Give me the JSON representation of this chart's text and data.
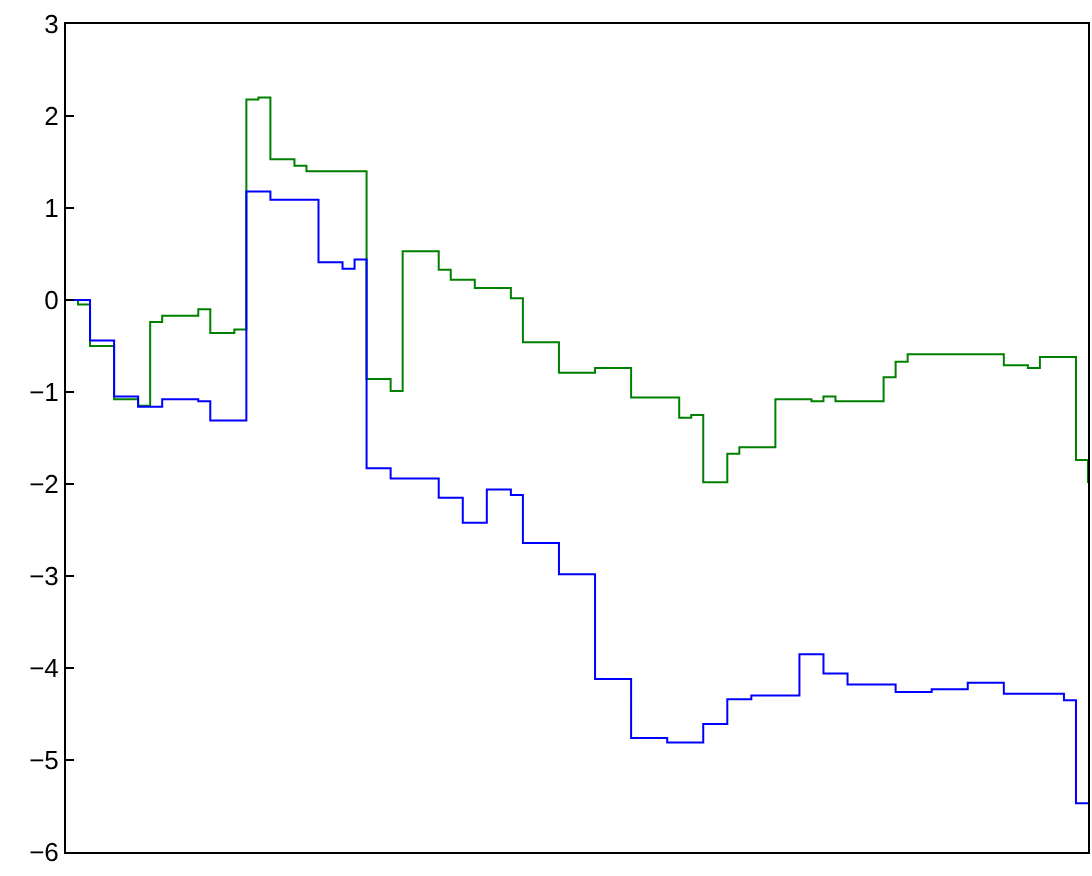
{
  "chart_data": {
    "type": "step",
    "categories": [
      null,
      null,
      null,
      null,
      null,
      null,
      null,
      null,
      null,
      null,
      null,
      null,
      null,
      null,
      null,
      null,
      null,
      null,
      null,
      null,
      null,
      null,
      null,
      null,
      null,
      null,
      null,
      null,
      null,
      null,
      null,
      null,
      null,
      null,
      null,
      null,
      null,
      null,
      null,
      null,
      null,
      null,
      null,
      null,
      null,
      null,
      null,
      null,
      null,
      null,
      null,
      null,
      null,
      null,
      null,
      null,
      null,
      null,
      null,
      null,
      null,
      null,
      null,
      null,
      null,
      null,
      null,
      null,
      null,
      null,
      null,
      null,
      null,
      null,
      null,
      null,
      null,
      null,
      null,
      null,
      null,
      null,
      null,
      null,
      null,
      null
    ],
    "series": [
      {
        "color": "#008000",
        "values": [
          0,
          -0.05,
          -0.5,
          -0.5,
          -1.08,
          -1.08,
          -1.15,
          -0.24,
          -0.17,
          -0.17,
          -0.17,
          -0.1,
          -0.36,
          -0.36,
          -0.32,
          2.18,
          2.2,
          1.53,
          1.53,
          1.46,
          1.4,
          1.4,
          1.4,
          1.4,
          1.4,
          -0.86,
          -0.86,
          -0.99,
          0.53,
          0.53,
          0.53,
          0.33,
          0.22,
          0.22,
          0.13,
          0.13,
          0.13,
          0.02,
          -0.46,
          -0.46,
          -0.46,
          -0.79,
          -0.79,
          -0.79,
          -0.74,
          -0.74,
          -0.74,
          -1.06,
          -1.06,
          -1.06,
          -1.06,
          -1.28,
          -1.25,
          -1.98,
          -1.98,
          -1.67,
          -1.6,
          -1.6,
          -1.6,
          -1.08,
          -1.08,
          -1.08,
          -1.1,
          -1.05,
          -1.1,
          -1.1,
          -1.1,
          -1.1,
          -0.84,
          -0.67,
          -0.59,
          -0.59,
          -0.59,
          -0.59,
          -0.59,
          -0.59,
          -0.59,
          -0.59,
          -0.71,
          -0.71,
          -0.74,
          -0.62,
          -0.62,
          -0.62,
          -1.74,
          -1.99
        ]
      },
      {
        "color": "#0000ff",
        "values": [
          0,
          0,
          -0.44,
          -0.44,
          -1.05,
          -1.05,
          -1.16,
          -1.16,
          -1.08,
          -1.08,
          -1.08,
          -1.1,
          -1.31,
          -1.31,
          -1.31,
          1.18,
          1.18,
          1.09,
          1.09,
          1.09,
          1.09,
          0.41,
          0.41,
          0.34,
          0.44,
          -1.83,
          -1.83,
          -1.94,
          -1.94,
          -1.94,
          -1.94,
          -2.15,
          -2.15,
          -2.42,
          -2.42,
          -2.06,
          -2.06,
          -2.12,
          -2.64,
          -2.64,
          -2.64,
          -2.98,
          -2.98,
          -2.98,
          -4.12,
          -4.12,
          -4.12,
          -4.76,
          -4.76,
          -4.76,
          -4.81,
          -4.81,
          -4.81,
          -4.61,
          -4.61,
          -4.34,
          -4.34,
          -4.3,
          -4.3,
          -4.3,
          -4.3,
          -3.85,
          -3.85,
          -4.06,
          -4.06,
          -4.18,
          -4.18,
          -4.18,
          -4.18,
          -4.26,
          -4.26,
          -4.26,
          -4.23,
          -4.23,
          -4.23,
          -4.16,
          -4.16,
          -4.16,
          -4.28,
          -4.28,
          -4.28,
          -4.28,
          -4.28,
          -4.35,
          -5.47,
          -5.47
        ]
      }
    ],
    "ylim": [
      -6,
      3
    ],
    "yticks": [
      -6,
      -5,
      -4,
      -3,
      -2,
      -1,
      0,
      1,
      2,
      3
    ],
    "marker": "none",
    "line_style": "solid",
    "tick_labels": "y"
  }
}
